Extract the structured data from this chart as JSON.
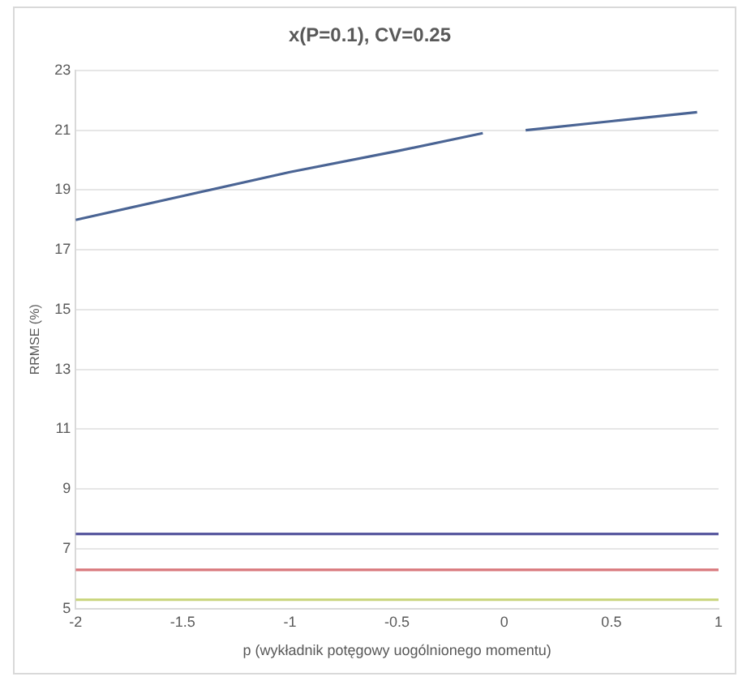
{
  "chart_data": {
    "type": "line",
    "title": "x(P=0.1), CV=0.25",
    "xlabel": "p (wykładnik potęgowy uogólnionego momentu)",
    "ylabel": "RRMSE (%)",
    "xlim": [
      -2,
      1
    ],
    "xticks": [
      -2,
      -1.5,
      -1,
      -0.5,
      0,
      0.5,
      1
    ],
    "ylim": [
      5,
      23
    ],
    "yticks": [
      5,
      7,
      9,
      11,
      13,
      15,
      17,
      19,
      21,
      23
    ],
    "grid": "y",
    "legend": false,
    "marker": "none",
    "line_style": "solid",
    "series": [
      {
        "color": "#4a6494",
        "x": [
          -2,
          -1.5,
          -1,
          -0.5,
          -0.1,
          0,
          0.1,
          0.5,
          0.9
        ],
        "values": [
          18.0,
          18.8,
          19.6,
          20.3,
          20.9,
          null,
          21.0,
          21.3,
          21.6
        ]
      },
      {
        "color": "#5a5aa0",
        "x": [
          -2,
          1
        ],
        "values": [
          7.5,
          7.5
        ]
      },
      {
        "color": "#d9787c",
        "x": [
          -2,
          1
        ],
        "values": [
          6.3,
          6.3
        ]
      },
      {
        "color": "#c8d47a",
        "x": [
          -2,
          1
        ],
        "values": [
          5.3,
          5.3
        ]
      }
    ]
  }
}
